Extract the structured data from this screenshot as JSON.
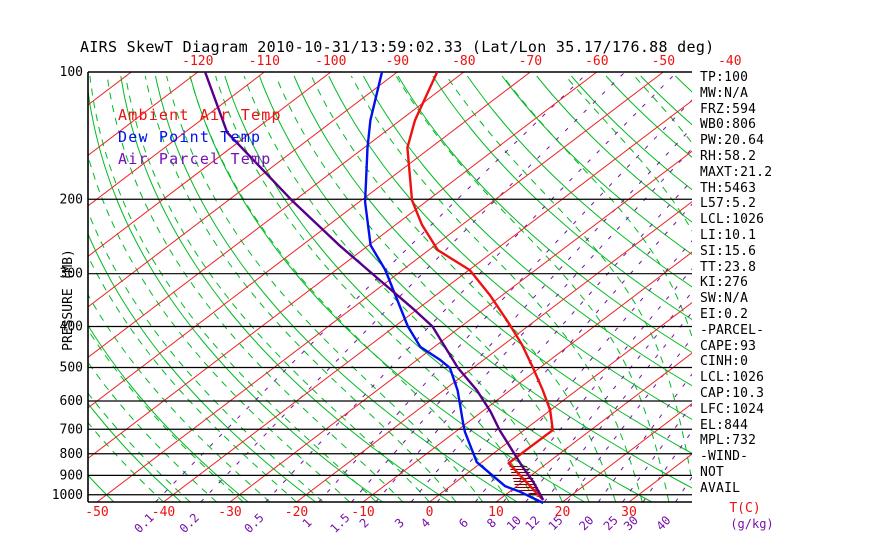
{
  "title": "AIRS SkewT Diagram 2010-10-31/13:59:02.33 (Lat/Lon 35.17/176.88 deg)",
  "colors": {
    "ambient": "#ee1111",
    "dewpoint": "#0011ee",
    "parcel": "#550088",
    "isotherm_grid": "#ee2222",
    "adiabat_green": "#00bb22",
    "mixing_purple": "#7711aa",
    "axis_black": "#000000",
    "hatch": "#770000"
  },
  "legend": [
    {
      "label": "Ambient Air Temp",
      "color": "#ee1111"
    },
    {
      "label": "Dew Point Temp",
      "color": "#0011ee"
    },
    {
      "label": "Air Parcel Temp",
      "color": "#7711bb"
    }
  ],
  "panel": {
    "lines": [
      "TP:100",
      "MW:N/A",
      "FRZ:594",
      "WB0:806",
      "PW:20.64",
      "RH:58.2",
      "MAXT:21.2",
      "TH:5463",
      "L57:5.2",
      "LCL:1026",
      "LI:10.1",
      "SI:15.6",
      "TT:23.8",
      "KI:276",
      "SW:N/A",
      "EI:0.2",
      "-PARCEL-",
      "CAPE:93",
      "CINH:0",
      "LCL:1026",
      "CAP:10.3",
      "LFC:1024",
      "EL:844",
      "MPL:732",
      "-WIND-",
      "NOT",
      "AVAIL"
    ]
  },
  "chart_data": {
    "type": "line",
    "title": "AIRS SkewT Diagram 2010-10-31/13:59:02.33 (Lat/Lon 35.17/176.88 deg)",
    "x_axis": {
      "label": "T(C)",
      "ticks_bottom": [
        -50,
        -40,
        -30,
        -20,
        -10,
        0,
        10,
        20,
        30
      ],
      "ticks_top": [
        -120,
        -110,
        -100,
        -90,
        -80,
        -70,
        -60,
        -50,
        -40
      ]
    },
    "y_axis": {
      "label": "PRESSURE (MB)",
      "ticks": [
        100,
        200,
        300,
        400,
        500,
        600,
        700,
        800,
        900,
        1000
      ],
      "scale": "log",
      "range": [
        100,
        1050
      ]
    },
    "mixing_axis": {
      "label": "(g/kg)",
      "ticks": [
        0.1,
        0.2,
        0.5,
        1,
        1.5,
        2,
        3,
        4,
        6,
        8,
        10,
        12,
        15,
        20,
        25,
        30,
        40
      ]
    },
    "grid": {
      "isotherms_c_step": 10,
      "isotherms_c_range": [
        -160,
        40
      ],
      "dry_adiabats_theta_range": [
        -60,
        170
      ],
      "dry_adiabats_theta_step": 10,
      "moist_adiabats_t0_range": [
        -40,
        60
      ],
      "moist_adiabats_t0_step": 4
    },
    "series": [
      {
        "name": "Ambient Air Temp",
        "color": "#ee1111",
        "points_p_T": [
          [
            100,
            -84
          ],
          [
            130,
            -77.8
          ],
          [
            151,
            -73.5
          ],
          [
            201,
            -62.4
          ],
          [
            230,
            -56
          ],
          [
            264,
            -48.6
          ],
          [
            294,
            -39.9
          ],
          [
            337,
            -31.9
          ],
          [
            392,
            -23.6
          ],
          [
            442,
            -17.2
          ],
          [
            499,
            -11.2
          ],
          [
            566,
            -5.1
          ],
          [
            630,
            -0.1
          ],
          [
            703,
            4.3
          ],
          [
            842,
            4.2
          ],
          [
            1029,
            16.7
          ]
        ]
      },
      {
        "name": "Dew Point Temp",
        "color": "#0011ee",
        "points_p_T": [
          [
            100,
            -92.3
          ],
          [
            130,
            -84.5
          ],
          [
            151,
            -79.5
          ],
          [
            203,
            -69.1
          ],
          [
            257,
            -59.7
          ],
          [
            294,
            -52.6
          ],
          [
            400,
            -38
          ],
          [
            447,
            -32.1
          ],
          [
            480,
            -26.5
          ],
          [
            501,
            -23.5
          ],
          [
            566,
            -17.9
          ],
          [
            683,
            -10.2
          ],
          [
            711,
            -8.5
          ],
          [
            837,
            -0.8
          ],
          [
            954,
            8.2
          ],
          [
            984,
            11.6
          ],
          [
            1046,
            17.3
          ]
        ]
      },
      {
        "name": "Air Parcel Temp",
        "color": "#550088",
        "points_p_T": [
          [
            100,
            -118.9
          ],
          [
            139,
            -103.6
          ],
          [
            201,
            -80.5
          ],
          [
            257,
            -64.4
          ],
          [
            294,
            -55.2
          ],
          [
            366,
            -40.2
          ],
          [
            400,
            -34.3
          ],
          [
            501,
            -22.3
          ],
          [
            566,
            -15
          ],
          [
            636,
            -8.7
          ],
          [
            703,
            -3.7
          ],
          [
            860,
            7.1
          ],
          [
            932,
            11.6
          ],
          [
            1029,
            16.7
          ]
        ]
      }
    ],
    "hatch_region_p_T": [
      [
        842,
        4.2
      ],
      [
        855,
        7.5
      ],
      [
        1023,
        16.6
      ],
      [
        969,
        10.4
      ]
    ]
  }
}
